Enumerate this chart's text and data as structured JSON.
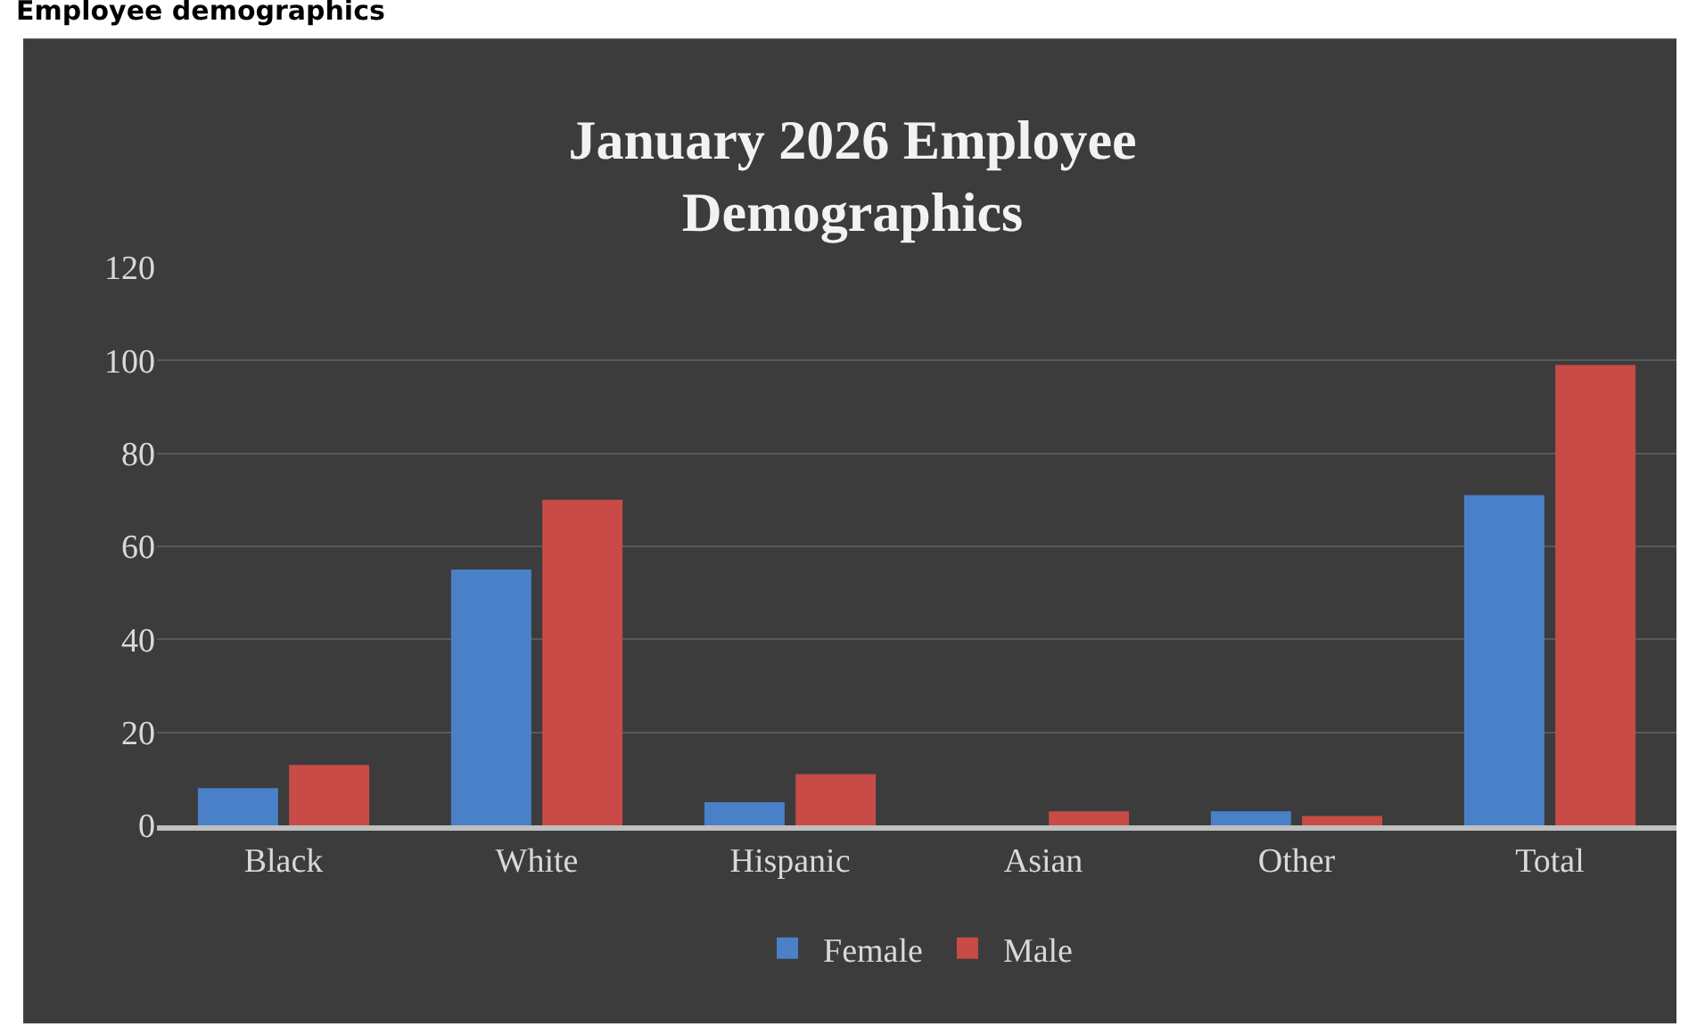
{
  "chart_data": {
    "type": "bar",
    "title": "January 2026 Employee Demographics",
    "annotations": [
      "Employee demographics"
    ],
    "categories": [
      "Black",
      "White",
      "Hispanic",
      "Asian",
      "Other",
      "Total"
    ],
    "series": [
      {
        "name": "Female",
        "color": "#4a80c8",
        "values": [
          8,
          55,
          5,
          0,
          3,
          71
        ]
      },
      {
        "name": "Male",
        "color": "#c84b47",
        "values": [
          13,
          70,
          11,
          3,
          2,
          99
        ]
      }
    ],
    "ylim": [
      0,
      120
    ],
    "yticks": [
      0,
      20,
      40,
      60,
      80,
      100,
      120
    ],
    "grid": "y",
    "legend": "bottom"
  }
}
